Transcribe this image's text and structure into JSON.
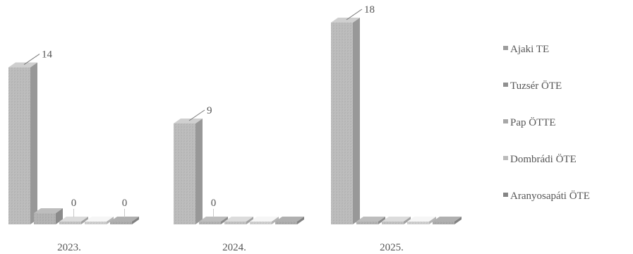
{
  "chart_data": {
    "type": "bar",
    "categories": [
      "2023.",
      "2024.",
      "2025."
    ],
    "series": [
      {
        "name": "Ajaki TE",
        "values": [
          14,
          9,
          18
        ],
        "color": "#b9b9b9"
      },
      {
        "name": "Tuzsér ÖTE",
        "values": [
          1,
          0,
          0
        ],
        "color": "#a9a9a9"
      },
      {
        "name": "Pap ÖTTE",
        "values": [
          0,
          0,
          0
        ],
        "color": "#c4c4c4"
      },
      {
        "name": "Dombrádi ÖTE",
        "values": [
          0,
          0,
          0
        ],
        "color": "#dcdcdc"
      },
      {
        "name": "Aranyosapáti ÖTE",
        "values": [
          0,
          0,
          0
        ],
        "color": "#9d9d9d"
      }
    ],
    "data_labels": [
      {
        "category": 0,
        "series": 0,
        "text": "14"
      },
      {
        "category": 0,
        "series": 2,
        "text": "0"
      },
      {
        "category": 0,
        "series": 4,
        "text": "0"
      },
      {
        "category": 1,
        "series": 0,
        "text": "9"
      },
      {
        "category": 1,
        "series": 1,
        "text": "0"
      },
      {
        "category": 2,
        "series": 0,
        "text": "18"
      }
    ],
    "ylim": [
      0,
      18
    ],
    "legend_position": "right",
    "grid": false
  }
}
